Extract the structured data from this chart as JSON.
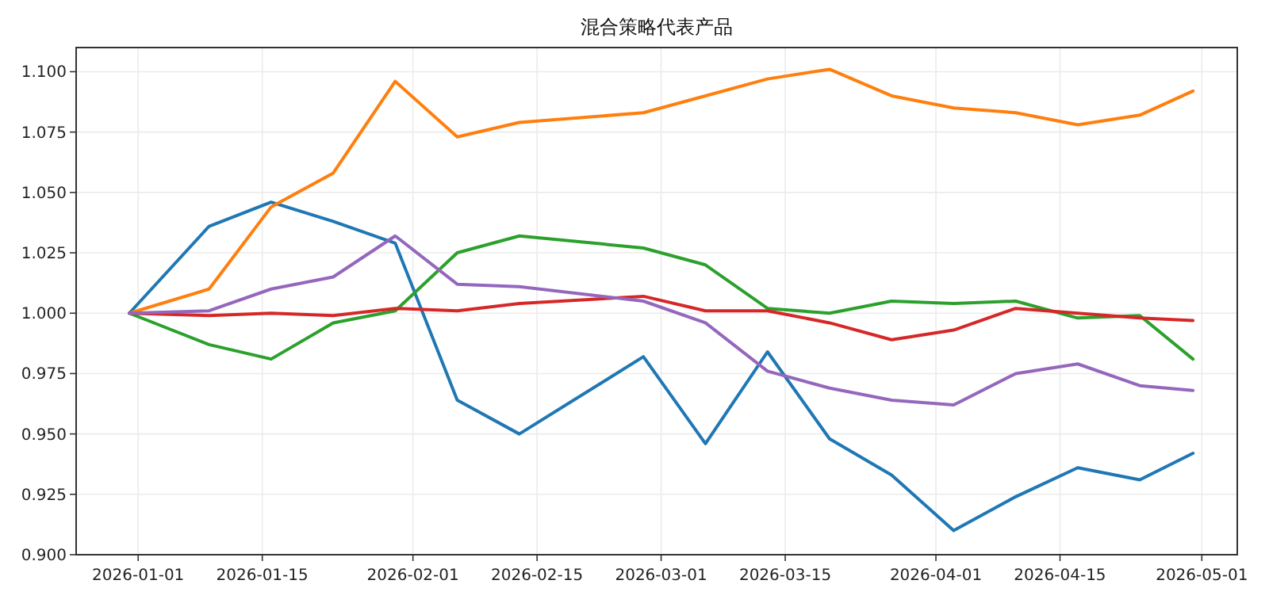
{
  "chart_data": {
    "type": "line",
    "title": "混合策略代表产品",
    "x": [
      "2025-12-31",
      "2026-01-09",
      "2026-01-16",
      "2026-01-23",
      "2026-01-30",
      "2026-02-06",
      "2026-02-13",
      "2026-02-27",
      "2026-03-06",
      "2026-03-13",
      "2026-03-20",
      "2026-03-27",
      "2026-04-03",
      "2026-04-10",
      "2026-04-17",
      "2026-04-24",
      "2026-04-30"
    ],
    "series": [
      {
        "color": "#1f77b4",
        "values": [
          1.0,
          1.036,
          1.046,
          1.038,
          1.029,
          0.964,
          0.95,
          0.982,
          0.946,
          0.984,
          0.948,
          0.933,
          0.91,
          0.924,
          0.936,
          0.931,
          0.942
        ]
      },
      {
        "color": "#ff7f0e",
        "values": [
          1.0,
          1.01,
          1.044,
          1.058,
          1.096,
          1.073,
          1.079,
          1.083,
          1.09,
          1.097,
          1.101,
          1.09,
          1.085,
          1.083,
          1.078,
          1.082,
          1.092
        ]
      },
      {
        "color": "#2ca02c",
        "values": [
          1.0,
          0.987,
          0.981,
          0.996,
          1.001,
          1.025,
          1.032,
          1.027,
          1.02,
          1.002,
          1.0,
          1.005,
          1.004,
          1.005,
          0.998,
          0.999,
          0.981
        ]
      },
      {
        "color": "#d62728",
        "values": [
          1.0,
          0.999,
          1.0,
          0.999,
          1.002,
          1.001,
          1.004,
          1.007,
          1.001,
          1.001,
          0.996,
          0.989,
          0.993,
          1.002,
          1.0,
          0.998,
          0.997
        ]
      },
      {
        "color": "#9467bd",
        "values": [
          1.0,
          1.001,
          1.01,
          1.015,
          1.032,
          1.012,
          1.011,
          1.005,
          0.996,
          0.976,
          0.969,
          0.964,
          0.962,
          0.975,
          0.979,
          0.97,
          0.968
        ]
      }
    ],
    "xlim": [
      "2025-12-25",
      "2026-05-05"
    ],
    "xticks": [
      "2026-01-01",
      "2026-01-15",
      "2026-02-01",
      "2026-02-15",
      "2026-03-01",
      "2026-03-15",
      "2026-04-01",
      "2026-04-15",
      "2026-05-01"
    ],
    "ylim": [
      0.9,
      1.11
    ],
    "yticks": [
      {
        "value": 0.9,
        "label": "0.900"
      },
      {
        "value": 0.925,
        "label": "0.925"
      },
      {
        "value": 0.95,
        "label": "0.950"
      },
      {
        "value": 0.975,
        "label": "0.975"
      },
      {
        "value": 1.0,
        "label": "1.000"
      },
      {
        "value": 1.025,
        "label": "1.025"
      },
      {
        "value": 1.05,
        "label": "1.050"
      },
      {
        "value": 1.075,
        "label": "1.075"
      },
      {
        "value": 1.1,
        "label": "1.100"
      }
    ],
    "grid": true,
    "marker": "none",
    "line_style": "solid"
  }
}
